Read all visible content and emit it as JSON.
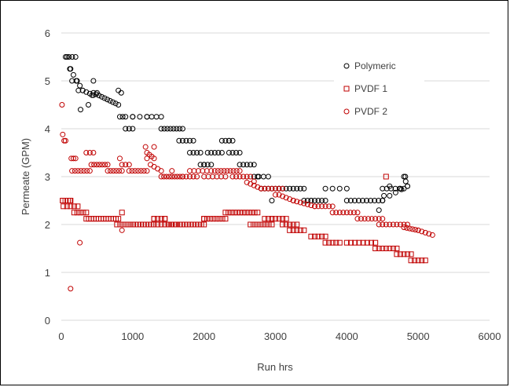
{
  "chart_data": {
    "type": "scatter",
    "title": "",
    "xlabel": "Run hrs",
    "ylabel": "Permeate (GPM)",
    "xlim": [
      0,
      6000
    ],
    "ylim": [
      0,
      6
    ],
    "x_ticks": [
      0,
      1000,
      2000,
      3000,
      4000,
      5000,
      6000
    ],
    "y_ticks": [
      0,
      1,
      2,
      3,
      4,
      5,
      6
    ],
    "x_tick_labels": [
      "0",
      "1000",
      "2000",
      "3000",
      "4000",
      "5000",
      "6000"
    ],
    "y_tick_labels": [
      "0",
      "1",
      "2",
      "3",
      "4",
      "5",
      "6"
    ],
    "grid": "horizontal",
    "legend_position": "top-right",
    "legend": [
      "Polymeric",
      "PVDF 1",
      "PVDF 2"
    ],
    "series": [
      {
        "name": "Polymeric",
        "marker": "circle-open",
        "color": "#000000",
        "segments": [
          [
            60,
            200,
            5.5,
            5.5,
            4
          ],
          [
            120,
            220,
            5.25,
            5.0,
            3
          ],
          [
            220,
            300,
            5.0,
            4.8,
            3
          ],
          [
            300,
            450,
            4.8,
            4.7,
            4
          ],
          [
            450,
            800,
            4.75,
            4.5,
            10
          ],
          [
            820,
            900,
            4.25,
            4.25,
            3
          ],
          [
            900,
            1000,
            4.0,
            4.0,
            3
          ],
          [
            1000,
            1200,
            4.25,
            4.25,
            3
          ],
          [
            1200,
            1400,
            4.25,
            4.25,
            4
          ],
          [
            1400,
            1700,
            4.0,
            4.0,
            8
          ],
          [
            1650,
            1850,
            3.75,
            3.75,
            5
          ],
          [
            1800,
            1950,
            3.5,
            3.5,
            4
          ],
          [
            1950,
            2100,
            3.25,
            3.25,
            4
          ],
          [
            2050,
            2250,
            3.5,
            3.5,
            5
          ],
          [
            2250,
            2400,
            3.75,
            3.75,
            4
          ],
          [
            2350,
            2500,
            3.5,
            3.5,
            4
          ],
          [
            2500,
            2700,
            3.25,
            3.25,
            5
          ],
          [
            2700,
            2900,
            3.0,
            3.0,
            4
          ],
          [
            2800,
            3050,
            2.75,
            2.75,
            6
          ],
          [
            3050,
            3400,
            2.75,
            2.75,
            8
          ],
          [
            3400,
            3700,
            2.5,
            2.5,
            7
          ],
          [
            3700,
            4000,
            2.75,
            2.75,
            4
          ],
          [
            4000,
            4500,
            2.5,
            2.5,
            10
          ],
          [
            4500,
            4800,
            2.75,
            2.75,
            6
          ],
          [
            4600,
            4850,
            2.6,
            2.8,
            4
          ],
          [
            4800,
            4850,
            3.0,
            2.8,
            3
          ]
        ],
        "points": [
          [
            80,
            5.5
          ],
          [
            130,
            5.25
          ],
          [
            150,
            5.0
          ],
          [
            210,
            5.0
          ],
          [
            240,
            4.8
          ],
          [
            270,
            4.4
          ],
          [
            380,
            4.5
          ],
          [
            450,
            5.0
          ],
          [
            430,
            4.7
          ],
          [
            500,
            4.75
          ],
          [
            800,
            4.8
          ],
          [
            840,
            4.75
          ],
          [
            1000,
            4.25
          ],
          [
            2000,
            3.25
          ],
          [
            2350,
            3.75
          ],
          [
            2750,
            3.0
          ],
          [
            2950,
            2.5
          ],
          [
            3500,
            2.5
          ],
          [
            4450,
            2.3
          ],
          [
            4500,
            2.5
          ],
          [
            4520,
            2.6
          ],
          [
            4600,
            2.8
          ],
          [
            4750,
            2.75
          ],
          [
            4820,
            3.0
          ]
        ]
      },
      {
        "name": "PVDF 1",
        "marker": "square-open",
        "color": "#c00000",
        "segments": [
          [
            20,
            130,
            2.5,
            2.5,
            4
          ],
          [
            30,
            230,
            2.38,
            2.38,
            5
          ],
          [
            180,
            350,
            2.25,
            2.25,
            5
          ],
          [
            350,
            800,
            2.12,
            2.12,
            14
          ],
          [
            780,
            1000,
            2.0,
            2.0,
            6
          ],
          [
            1000,
            1300,
            2.0,
            2.0,
            9
          ],
          [
            1300,
            1450,
            2.12,
            2.12,
            4
          ],
          [
            1350,
            1600,
            2.0,
            2.0,
            6
          ],
          [
            1500,
            2000,
            2.0,
            2.0,
            14
          ],
          [
            2000,
            2300,
            2.12,
            2.12,
            8
          ],
          [
            2300,
            2750,
            2.25,
            2.25,
            12
          ],
          [
            2650,
            2950,
            2.0,
            2.0,
            8
          ],
          [
            2850,
            3150,
            2.12,
            2.12,
            7
          ],
          [
            3100,
            3300,
            2.0,
            2.0,
            5
          ],
          [
            3200,
            3400,
            1.88,
            1.88,
            5
          ],
          [
            3500,
            3700,
            1.75,
            1.75,
            5
          ],
          [
            3700,
            3900,
            1.62,
            1.62,
            5
          ],
          [
            4000,
            4400,
            1.62,
            1.62,
            8
          ],
          [
            4400,
            4700,
            1.5,
            1.5,
            7
          ],
          [
            4700,
            4900,
            1.38,
            1.38,
            5
          ],
          [
            4900,
            5100,
            1.25,
            1.25,
            5
          ]
        ],
        "points": [
          [
            20,
            2.5
          ],
          [
            120,
            2.5
          ],
          [
            850,
            2.25
          ],
          [
            1300,
            2.12
          ],
          [
            1450,
            2.12
          ],
          [
            2000,
            2.12
          ],
          [
            2950,
            2.12
          ],
          [
            3200,
            2.0
          ],
          [
            4550,
            3.0
          ]
        ]
      },
      {
        "name": "PVDF 2",
        "marker": "circle-open",
        "color": "#c00000",
        "segments": [
          [
            140,
            200,
            3.38,
            3.38,
            3
          ],
          [
            150,
            400,
            3.12,
            3.12,
            7
          ],
          [
            350,
            450,
            3.5,
            3.5,
            3
          ],
          [
            420,
            650,
            3.25,
            3.25,
            7
          ],
          [
            650,
            850,
            3.12,
            3.12,
            6
          ],
          [
            850,
            950,
            3.25,
            3.25,
            3
          ],
          [
            950,
            1200,
            3.12,
            3.12,
            7
          ],
          [
            1200,
            1300,
            3.5,
            3.38,
            4
          ],
          [
            1250,
            1400,
            3.25,
            3.12,
            4
          ],
          [
            1400,
            1700,
            3.0,
            3.0,
            9
          ],
          [
            1700,
            1900,
            3.0,
            3.0,
            5
          ],
          [
            1800,
            2100,
            3.12,
            3.12,
            6
          ],
          [
            2000,
            2300,
            3.0,
            3.0,
            6
          ],
          [
            2150,
            2500,
            3.12,
            3.12,
            9
          ],
          [
            2400,
            2650,
            3.0,
            3.0,
            6
          ],
          [
            2600,
            2800,
            2.88,
            2.75,
            5
          ],
          [
            2800,
            3100,
            2.75,
            2.75,
            7
          ],
          [
            3050,
            3250,
            2.62,
            2.5,
            5
          ],
          [
            3250,
            3550,
            2.5,
            2.38,
            7
          ],
          [
            3550,
            3800,
            2.38,
            2.38,
            6
          ],
          [
            3800,
            4150,
            2.25,
            2.25,
            8
          ],
          [
            4150,
            4450,
            2.12,
            2.12,
            7
          ],
          [
            4450,
            4850,
            2.0,
            2.0,
            9
          ],
          [
            4800,
            5000,
            1.94,
            1.88,
            6
          ],
          [
            5000,
            5200,
            1.88,
            1.78,
            5
          ]
        ],
        "points": [
          [
            10,
            4.5
          ],
          [
            20,
            3.88
          ],
          [
            40,
            3.75
          ],
          [
            60,
            3.75
          ],
          [
            130,
            0.66
          ],
          [
            260,
            1.62
          ],
          [
            850,
            1.88
          ],
          [
            820,
            3.38
          ],
          [
            1180,
            3.62
          ],
          [
            1200,
            3.38
          ],
          [
            1300,
            3.62
          ],
          [
            1550,
            3.12
          ],
          [
            2700,
            2.9
          ],
          [
            3000,
            2.62
          ],
          [
            4500,
            2.12
          ]
        ]
      }
    ]
  }
}
